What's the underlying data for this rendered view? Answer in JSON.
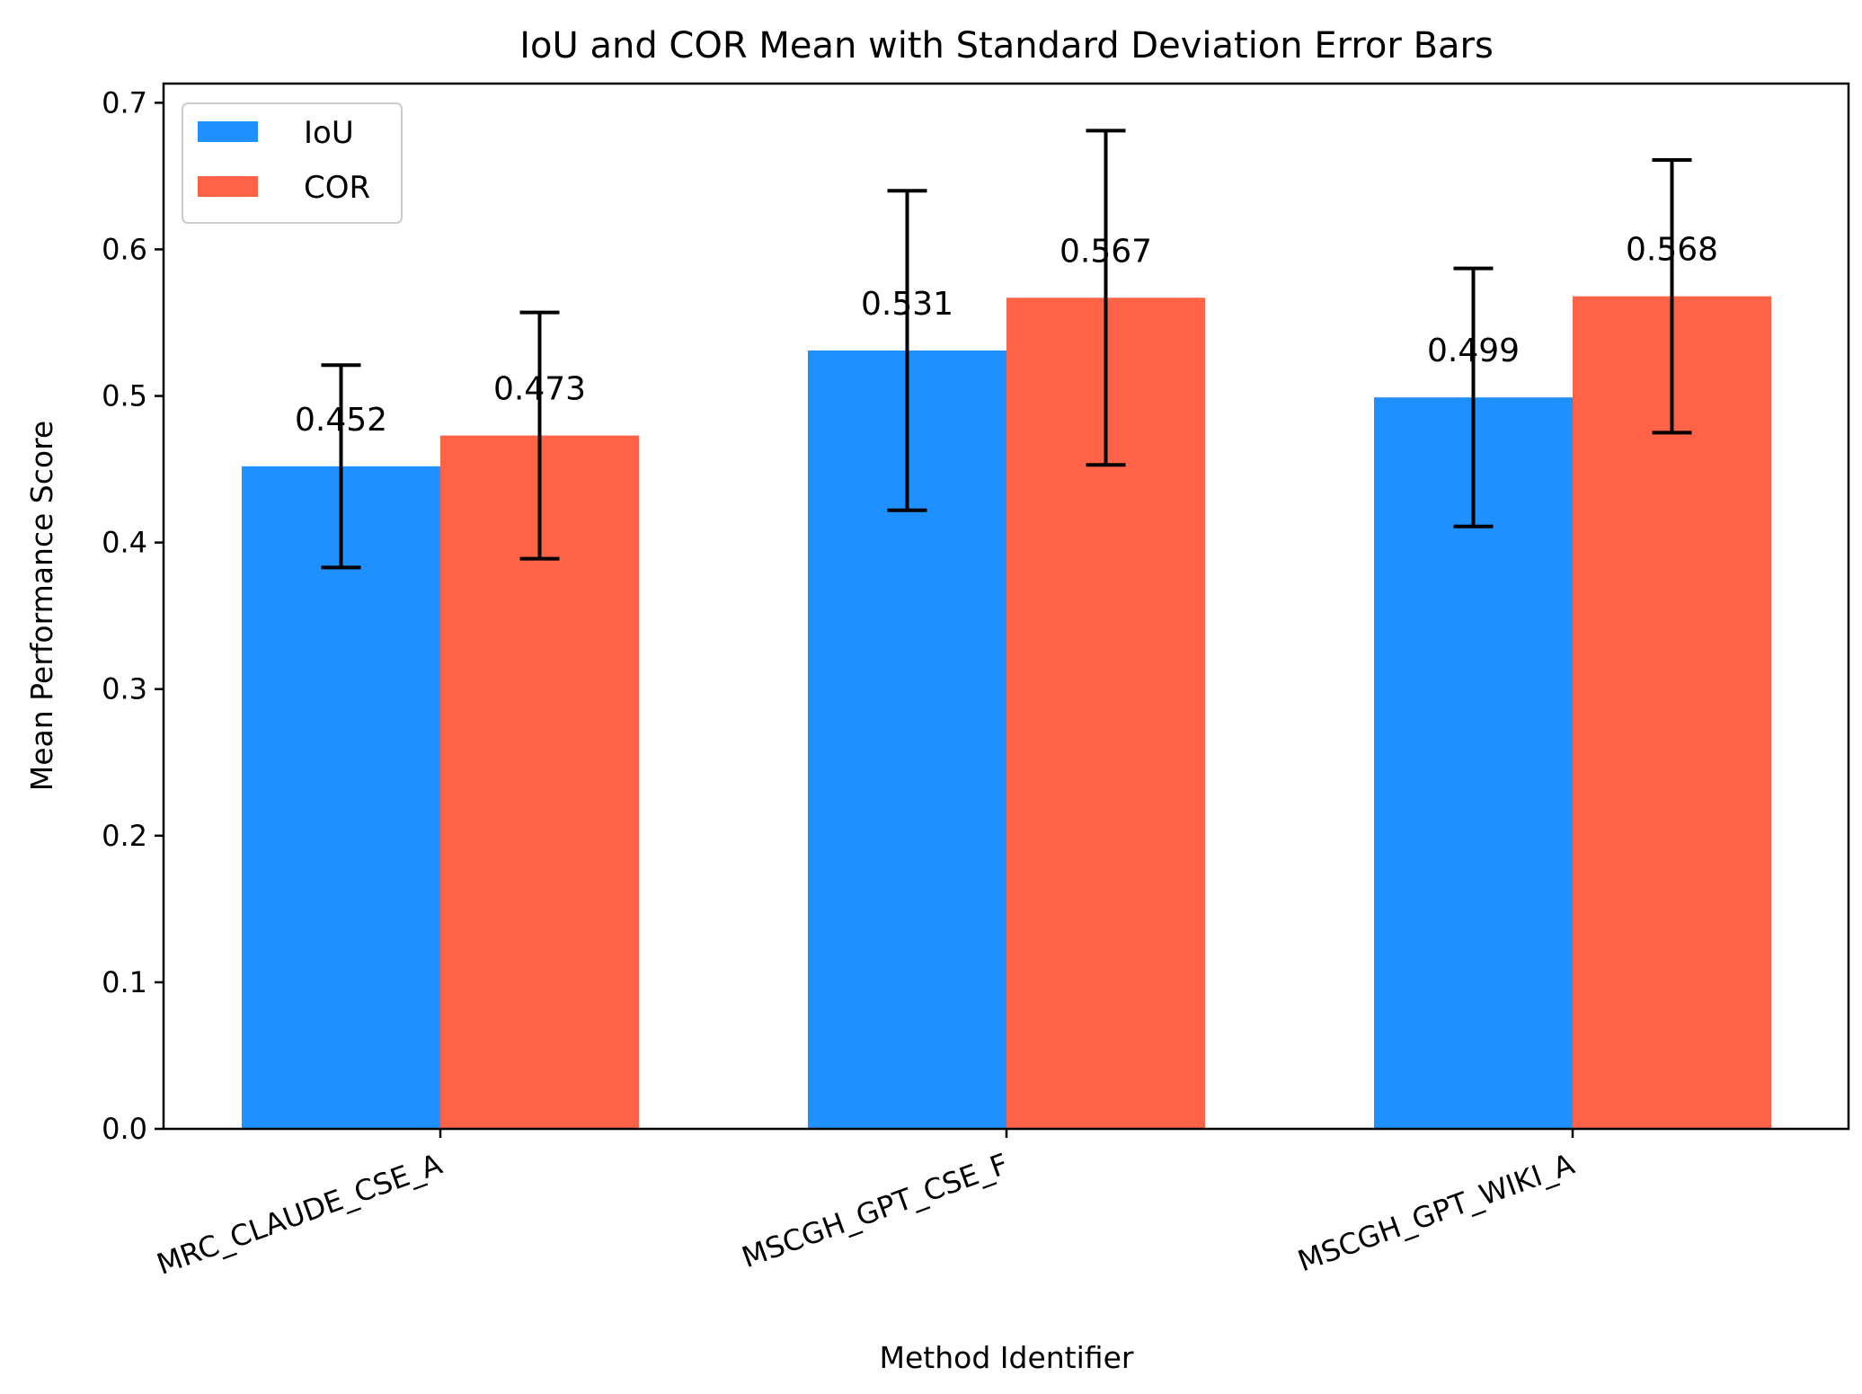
{
  "chart_data": {
    "type": "bar",
    "title": "IoU and COR Mean with Standard Deviation Error Bars",
    "xlabel": "Method Identifier",
    "ylabel": "Mean Performance Score",
    "ylim": [
      0,
      0.7
    ],
    "yticks": [
      "0.0",
      "0.1",
      "0.2",
      "0.3",
      "0.4",
      "0.5",
      "0.6",
      "0.7"
    ],
    "categories": [
      "MRC_CLAUDE_CSE_A",
      "MSCGH_GPT_CSE_F",
      "MSCGH_GPT_WIKI_A"
    ],
    "series": [
      {
        "name": "IoU",
        "color": "#1e90ff",
        "values": [
          0.452,
          0.531,
          0.499
        ],
        "errors": [
          0.069,
          0.109,
          0.088
        ],
        "labels": [
          "0.452",
          "0.531",
          "0.499"
        ]
      },
      {
        "name": "COR",
        "color": "#ff6347",
        "values": [
          0.473,
          0.567,
          0.568
        ],
        "errors": [
          0.084,
          0.114,
          0.093
        ],
        "labels": [
          "0.473",
          "0.567",
          "0.568"
        ]
      }
    ],
    "legend_position": "upper-left",
    "grid": false
  }
}
